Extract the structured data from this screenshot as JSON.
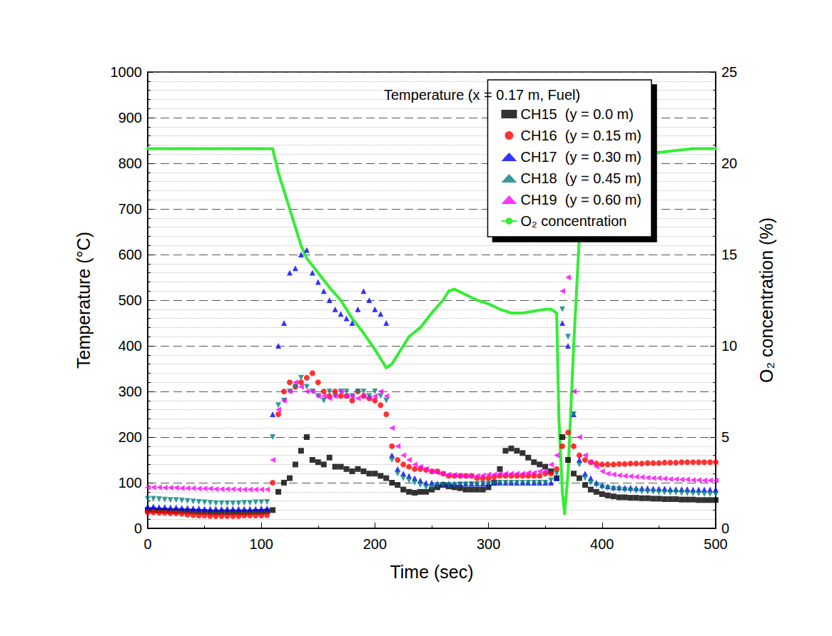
{
  "chart_data": {
    "type": "scatter",
    "legend_title": "Temperature (x = 0.17 m, Fuel)",
    "x_label": "Time (sec)",
    "y_label": "Temperature (°C)",
    "y2_label": "O₂ concentration (%)",
    "xlim": [
      0,
      500
    ],
    "xticks": [
      0,
      100,
      200,
      300,
      400,
      500
    ],
    "ylim": [
      0,
      1000
    ],
    "yticks": [
      0,
      100,
      200,
      300,
      400,
      500,
      600,
      700,
      800,
      900,
      1000
    ],
    "y2lim": [
      0,
      25
    ],
    "y2ticks": [
      0,
      5,
      10,
      15,
      20,
      25
    ],
    "grid": true,
    "legend": "top-right",
    "x": [
      0,
      5,
      10,
      15,
      20,
      25,
      30,
      35,
      40,
      45,
      50,
      55,
      60,
      65,
      70,
      75,
      80,
      85,
      90,
      95,
      100,
      105,
      110,
      115,
      120,
      125,
      130,
      135,
      140,
      145,
      150,
      155,
      160,
      165,
      170,
      175,
      180,
      185,
      190,
      195,
      200,
      205,
      210,
      215,
      220,
      225,
      230,
      235,
      240,
      245,
      250,
      255,
      260,
      265,
      270,
      275,
      280,
      285,
      290,
      295,
      300,
      305,
      310,
      315,
      320,
      325,
      330,
      335,
      340,
      345,
      350,
      355,
      360,
      365,
      370,
      375,
      380,
      385,
      390,
      395,
      400,
      405,
      410,
      415,
      420,
      425,
      430,
      435,
      440,
      445,
      450,
      455,
      460,
      465,
      470,
      475,
      480,
      485,
      490,
      495,
      500
    ],
    "series": [
      {
        "name": "CH15  (y = 0.0 m)",
        "color": "#000000",
        "marker": "square",
        "values": [
          40,
          40,
          39,
          39,
          38,
          38,
          38,
          37,
          37,
          36,
          36,
          35,
          35,
          35,
          35,
          35,
          35,
          35,
          35,
          36,
          36,
          37,
          40,
          80,
          100,
          110,
          140,
          170,
          200,
          150,
          145,
          140,
          155,
          135,
          135,
          130,
          125,
          130,
          125,
          120,
          120,
          115,
          110,
          100,
          95,
          85,
          80,
          78,
          80,
          80,
          85,
          90,
          95,
          92,
          90,
          88,
          85,
          85,
          85,
          85,
          90,
          100,
          130,
          170,
          175,
          170,
          165,
          155,
          145,
          140,
          135,
          125,
          110,
          200,
          150,
          120,
          110,
          95,
          85,
          80,
          75,
          72,
          70,
          68,
          68,
          67,
          67,
          66,
          66,
          65,
          65,
          64,
          64,
          64,
          63,
          63,
          63,
          62,
          62,
          62,
          62
        ]
      },
      {
        "name": "CH16  (y = 0.15 m)",
        "color": "#ff0000",
        "marker": "circle",
        "values": [
          35,
          35,
          34,
          34,
          33,
          33,
          32,
          30,
          29,
          28,
          28,
          27,
          27,
          27,
          27,
          27,
          27,
          28,
          28,
          28,
          28,
          29,
          100,
          250,
          300,
          320,
          310,
          320,
          330,
          340,
          320,
          300,
          290,
          300,
          290,
          290,
          280,
          300,
          290,
          285,
          280,
          270,
          250,
          180,
          150,
          140,
          135,
          130,
          130,
          128,
          125,
          125,
          120,
          115,
          115,
          115,
          115,
          115,
          110,
          110,
          110,
          112,
          115,
          115,
          115,
          115,
          115,
          115,
          115,
          115,
          120,
          120,
          130,
          180,
          210,
          180,
          160,
          150,
          145,
          142,
          140,
          140,
          140,
          141,
          141,
          142,
          142,
          142,
          143,
          143,
          143,
          144,
          144,
          144,
          145,
          145,
          145,
          145,
          145,
          145,
          145
        ]
      },
      {
        "name": "CH17  (y = 0.30 m)",
        "color": "#0000ff",
        "marker": "triangle-up",
        "values": [
          48,
          48,
          47,
          47,
          46,
          46,
          45,
          45,
          44,
          44,
          43,
          43,
          43,
          43,
          43,
          43,
          43,
          43,
          43,
          43,
          44,
          44,
          250,
          400,
          450,
          560,
          570,
          600,
          610,
          560,
          540,
          520,
          500,
          480,
          470,
          460,
          450,
          480,
          520,
          500,
          480,
          470,
          450,
          160,
          130,
          120,
          115,
          110,
          105,
          100,
          100,
          98,
          98,
          98,
          98,
          98,
          98,
          98,
          98,
          98,
          98,
          100,
          100,
          100,
          100,
          100,
          100,
          100,
          100,
          100,
          100,
          100,
          110,
          450,
          400,
          250,
          150,
          120,
          110,
          100,
          95,
          92,
          90,
          90,
          89,
          89,
          88,
          88,
          88,
          87,
          87,
          87,
          86,
          86,
          86,
          86,
          85,
          85,
          85,
          85,
          85
        ]
      },
      {
        "name": "CH18  (y = 0.45 m)",
        "color": "#008080",
        "marker": "triangle-down",
        "values": [
          65,
          65,
          64,
          63,
          62,
          62,
          61,
          60,
          59,
          58,
          57,
          56,
          55,
          55,
          55,
          55,
          55,
          56,
          56,
          57,
          57,
          58,
          200,
          270,
          280,
          300,
          310,
          330,
          310,
          300,
          290,
          280,
          300,
          290,
          300,
          300,
          290,
          300,
          300,
          290,
          300,
          290,
          280,
          150,
          120,
          110,
          105,
          100,
          95,
          90,
          90,
          95,
          95,
          95,
          95,
          96,
          96,
          97,
          97,
          98,
          98,
          98,
          100,
          100,
          100,
          100,
          100,
          100,
          100,
          100,
          100,
          105,
          120,
          480,
          420,
          250,
          140,
          110,
          100,
          95,
          90,
          88,
          86,
          85,
          84,
          83,
          82,
          81,
          80,
          80,
          79,
          79,
          78,
          78,
          77,
          77,
          76,
          76,
          75,
          75,
          75
        ]
      },
      {
        "name": "CH19  (y = 0.60 m)",
        "color": "#ff00ff",
        "marker": "triangle-left",
        "values": [
          90,
          90,
          90,
          89,
          89,
          89,
          88,
          88,
          88,
          87,
          87,
          87,
          86,
          86,
          86,
          86,
          85,
          85,
          85,
          85,
          85,
          85,
          150,
          260,
          280,
          300,
          320,
          310,
          300,
          300,
          290,
          290,
          285,
          290,
          300,
          290,
          290,
          285,
          290,
          285,
          290,
          300,
          290,
          220,
          180,
          160,
          150,
          140,
          135,
          130,
          125,
          122,
          120,
          118,
          117,
          116,
          115,
          115,
          115,
          116,
          118,
          118,
          120,
          120,
          120,
          120,
          120,
          122,
          122,
          125,
          125,
          140,
          160,
          520,
          550,
          300,
          200,
          160,
          145,
          135,
          125,
          120,
          118,
          116,
          115,
          114,
          113,
          112,
          111,
          110,
          110,
          109,
          108,
          108,
          107,
          107,
          106,
          106,
          105,
          105,
          105
        ]
      },
      {
        "name": "O₂ concentration",
        "color": "#33ee33",
        "type": "line",
        "marker": "circle",
        "line_style": "solid",
        "axis": "y2",
        "x": [
          0,
          20,
          40,
          60,
          80,
          100,
          110,
          115,
          120,
          125,
          130,
          135,
          140,
          150,
          160,
          170,
          180,
          190,
          200,
          210,
          215,
          220,
          225,
          230,
          240,
          250,
          260,
          265,
          270,
          280,
          290,
          300,
          310,
          320,
          330,
          340,
          350,
          355,
          360,
          362,
          365,
          367,
          370,
          375,
          380,
          385,
          390,
          400,
          420,
          450,
          480,
          500
        ],
        "values": [
          20.8,
          20.8,
          20.8,
          20.8,
          20.8,
          20.8,
          20.8,
          19.5,
          18.5,
          17.5,
          16.5,
          15.5,
          14.8,
          14.0,
          13.2,
          12.5,
          11.5,
          10.7,
          9.8,
          8.8,
          9.0,
          9.5,
          10.0,
          10.5,
          11.0,
          11.8,
          12.5,
          13.0,
          13.1,
          12.8,
          12.5,
          12.3,
          12.0,
          11.8,
          11.8,
          11.9,
          12.0,
          12.0,
          11.8,
          6.0,
          2.0,
          0.8,
          3.0,
          10.0,
          16.0,
          18.5,
          19.5,
          20.0,
          20.4,
          20.6,
          20.8,
          20.8
        ]
      }
    ]
  }
}
